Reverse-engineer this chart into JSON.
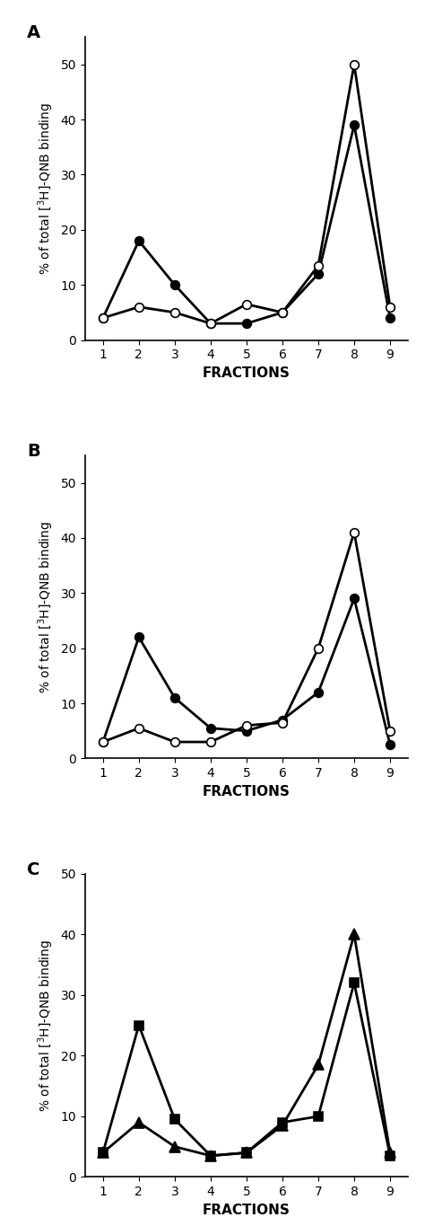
{
  "fractions": [
    1,
    2,
    3,
    4,
    5,
    6,
    7,
    8,
    9
  ],
  "panel_A": {
    "label": "A",
    "series1": {
      "y": [
        4,
        18,
        10,
        3,
        3,
        5,
        12,
        39,
        4
      ],
      "marker": "o",
      "color": "black",
      "facecolor": "black",
      "linewidth": 2.0,
      "markersize": 7
    },
    "series2": {
      "y": [
        4,
        6,
        5,
        3,
        6.5,
        5,
        13.5,
        50,
        6
      ],
      "marker": "o",
      "color": "black",
      "facecolor": "white",
      "linewidth": 2.0,
      "markersize": 7
    },
    "ylim": [
      0,
      55
    ],
    "yticks": [
      0,
      10,
      20,
      30,
      40,
      50
    ]
  },
  "panel_B": {
    "label": "B",
    "series1": {
      "y": [
        3,
        22,
        11,
        5.5,
        5,
        7,
        12,
        29,
        2.5
      ],
      "marker": "o",
      "color": "black",
      "facecolor": "black",
      "linewidth": 2.0,
      "markersize": 7
    },
    "series2": {
      "y": [
        3,
        5.5,
        3,
        3,
        6,
        6.5,
        20,
        41,
        5
      ],
      "marker": "o",
      "color": "black",
      "facecolor": "white",
      "linewidth": 2.0,
      "markersize": 7
    },
    "ylim": [
      0,
      55
    ],
    "yticks": [
      0,
      10,
      20,
      30,
      40,
      50
    ]
  },
  "panel_C": {
    "label": "C",
    "series1": {
      "y": [
        4,
        25,
        9.5,
        3.5,
        4,
        9,
        10,
        32,
        3.5
      ],
      "marker": "s",
      "color": "black",
      "facecolor": "black",
      "linewidth": 2.0,
      "markersize": 7
    },
    "series2": {
      "y": [
        4,
        9,
        5,
        3.5,
        4,
        8.5,
        18.5,
        40,
        4
      ],
      "marker": "^",
      "color": "black",
      "facecolor": "black",
      "linewidth": 2.0,
      "markersize": 8
    },
    "ylim": [
      0,
      50
    ],
    "yticks": [
      0,
      10,
      20,
      30,
      40,
      50
    ]
  },
  "xlabel": "FRACTIONS",
  "ylabel": "% of total [$^{3}$H]-QNB binding",
  "background_color": "white",
  "ylabel_fontsize": 10,
  "xlabel_fontsize": 11,
  "tick_fontsize": 10,
  "label_fontsize": 14
}
